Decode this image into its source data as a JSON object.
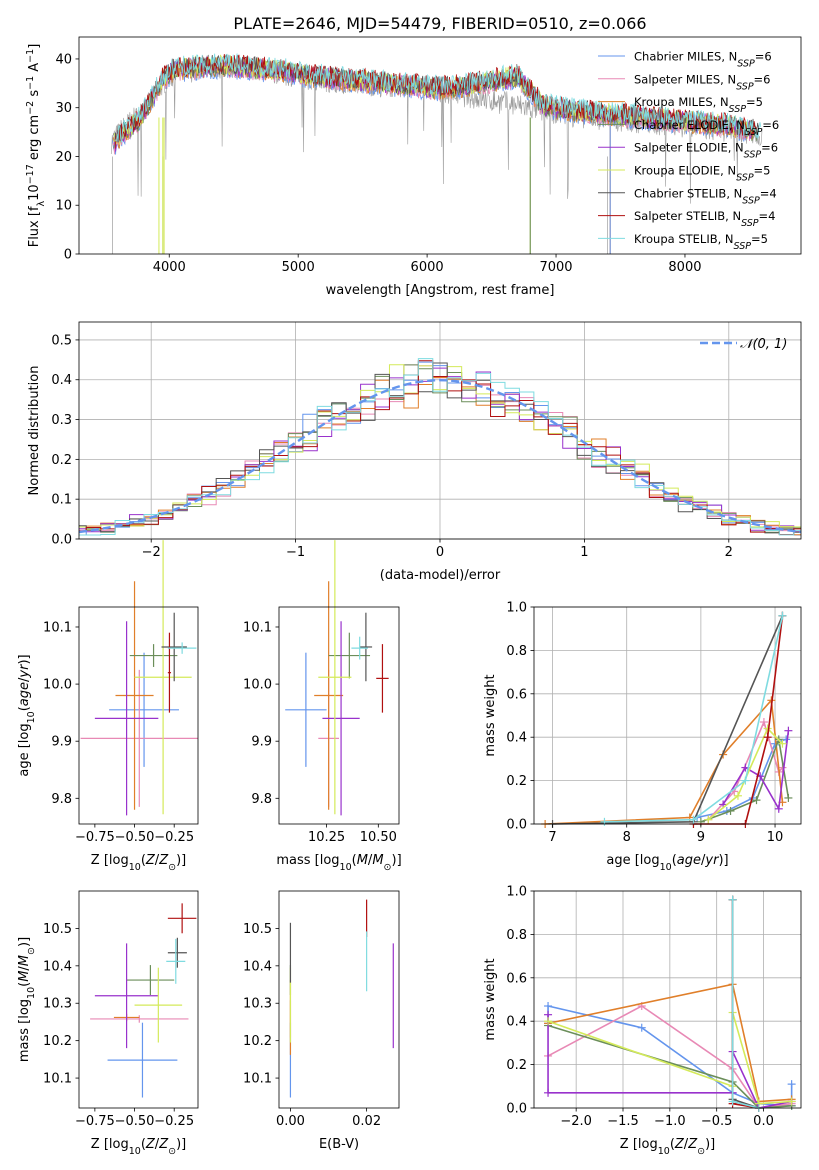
{
  "figure": {
    "title": "PLATE=2646, MJD=54479, FIBERID=0510, z=0.066"
  },
  "series_meta": [
    {
      "name": "Chabrier MILES, N$_{SSP}$=6",
      "label_main": "Chabrier MILES, N",
      "label_sub": "SSP",
      "label_end": "=6",
      "color": "#6495ed"
    },
    {
      "name": "Salpeter MILES, N$_{SSP}$=6",
      "label_main": "Salpeter MILES, N",
      "label_sub": "SSP",
      "label_end": "=6",
      "color": "#e889b5"
    },
    {
      "name": "Kroupa MILES, N$_{SSP}$=5",
      "label_main": "Kroupa MILES, N",
      "label_sub": "SSP",
      "label_end": "=5",
      "color": "#e07f2a"
    },
    {
      "name": "Chabrier ELODIE, N$_{SSP}$=6",
      "label_main": "Chabrier ELODIE, N",
      "label_sub": "SSP",
      "label_end": "=6",
      "color": "#6b8e5a"
    },
    {
      "name": "Salpeter ELODIE, N$_{SSP}$=6",
      "label_main": "Salpeter ELODIE, N",
      "label_sub": "SSP",
      "label_end": "=6",
      "color": "#9932cc"
    },
    {
      "name": "Kroupa ELODIE, N$_{SSP}$=5",
      "label_main": "Kroupa ELODIE, N",
      "label_sub": "SSP",
      "label_end": "=5",
      "color": "#d4ea5a"
    },
    {
      "name": "Chabrier STELIB, N$_{SSP}$=4",
      "label_main": "Chabrier STELIB, N",
      "label_sub": "SSP",
      "label_end": "=4",
      "color": "#555555"
    },
    {
      "name": "Salpeter STELIB, N$_{SSP}$=4",
      "label_main": "Salpeter STELIB, N",
      "label_sub": "SSP",
      "label_end": "=4",
      "color": "#b01010"
    },
    {
      "name": "Kroupa STELIB, N$_{SSP}$=5",
      "label_main": "Kroupa STELIB, N",
      "label_sub": "SSP",
      "label_end": "=5",
      "color": "#7fdbe0"
    }
  ],
  "chart_data": [
    {
      "id": "spectrum",
      "type": "line",
      "xlabel": "wavelength [Angstrom, rest frame]",
      "ylabel": "Flux [f$_\\lambda$ 10$^{-17}$ erg cm$^{-2}$ s$^{-1}$ A$^{-1}$]",
      "ylabel_parts": [
        "Flux [f",
        "λ",
        "10",
        "−17",
        " erg cm",
        "−2",
        " s",
        "−1",
        " A",
        "−1",
        "]"
      ],
      "xlim": [
        3300,
        8900
      ],
      "ylim": [
        0,
        44.5
      ],
      "xticks": [
        4000,
        5000,
        6000,
        7000,
        8000
      ],
      "yticks": [
        0,
        10,
        20,
        30,
        40
      ],
      "grid": false,
      "legend": "top-right",
      "x": [
        3550,
        3650,
        3750,
        3850,
        3950,
        4050,
        4150,
        4300,
        4500,
        4700,
        4900,
        5100,
        5300,
        5500,
        5700,
        5900,
        6100,
        6300,
        6500,
        6700,
        6900,
        7100,
        7300,
        7500,
        7700,
        7900,
        8100,
        8300,
        8500,
        8600
      ],
      "data_mean": [
        23,
        26,
        28,
        31,
        35,
        37,
        37.5,
        38.5,
        38.5,
        38,
        37,
        36,
        35.5,
        35,
        34.5,
        34.5,
        33.5,
        32.5,
        31.5,
        30.5,
        29.5,
        28.5,
        28,
        27.5,
        27,
        26.5,
        26,
        25.5,
        25,
        24.5
      ],
      "model_mean": [
        22,
        25,
        27,
        31,
        36,
        38,
        38,
        38.5,
        38.5,
        38,
        37.5,
        36.5,
        36,
        35.5,
        35,
        34.5,
        34,
        34.5,
        35.5,
        36.5,
        30.5,
        29.5,
        29,
        28.5,
        28,
        27.5,
        27,
        26.5,
        25.5,
        25
      ]
    },
    {
      "id": "residuals",
      "type": "histogram",
      "xlabel": "(data-model)/error",
      "ylabel": "Normed distribution",
      "xlim": [
        -2.5,
        2.5
      ],
      "ylim": [
        0,
        0.545
      ],
      "xticks": [
        -2,
        -1,
        0,
        1,
        2
      ],
      "yticks": [
        0.0,
        0.1,
        0.2,
        0.3,
        0.4,
        0.5
      ],
      "grid": true,
      "legend_label_main": "𝒩(0, 1)",
      "reference_curve": {
        "type": "gaussian",
        "mean": 0,
        "sigma": 1,
        "style": "dashed",
        "color": "#6495ed"
      },
      "bin_width": 0.1
    },
    {
      "id": "age_vs_Z",
      "type": "errorbar",
      "xlabel": "Z [log$_{10}$($Z/Z_\\odot$)]",
      "ylabel": "age  [log$_{10}$($age/yr$)]",
      "xlim": [
        -0.85,
        -0.1
      ],
      "ylim": [
        9.755,
        10.135
      ],
      "xticks": [
        -0.75,
        -0.5,
        -0.25
      ],
      "yticks": [
        9.8,
        9.9,
        10.0,
        10.1
      ],
      "points": [
        {
          "x": -0.44,
          "y": 9.955,
          "xerr": 0.22,
          "yerr": 0.1
        },
        {
          "x": -0.47,
          "y": 9.905,
          "xerr": 0.37,
          "yerr": 0.12
        },
        {
          "x": -0.5,
          "y": 9.98,
          "xerr": 0.12,
          "yerr": 0.2
        },
        {
          "x": -0.38,
          "y": 10.05,
          "xerr": 0.15,
          "yerr": 0.02
        },
        {
          "x": -0.55,
          "y": 9.94,
          "xerr": 0.2,
          "yerr": 0.17
        },
        {
          "x": -0.32,
          "y": 10.012,
          "xerr": 0.18,
          "yerr": 0.24
        },
        {
          "x": -0.25,
          "y": 10.065,
          "xerr": 0.08,
          "yerr": 0.06
        },
        {
          "x": -0.28,
          "y": 10.02,
          "xerr": 0.01,
          "yerr": 0.07
        },
        {
          "x": -0.2,
          "y": 10.063,
          "xerr": 0.09,
          "yerr": 0.01
        }
      ]
    },
    {
      "id": "age_vs_mass",
      "type": "errorbar",
      "xlabel": "mass [log$_{10}$($M/M_\\odot$)]",
      "ylabel": "",
      "xlim": [
        10.02,
        10.6
      ],
      "ylim": [
        9.755,
        10.135
      ],
      "xticks": [
        10.25,
        10.5
      ],
      "yticks": [
        9.8,
        9.9,
        10.0,
        10.1
      ],
      "points": [
        {
          "x": 10.15,
          "y": 9.955,
          "xerr": 0.1,
          "yerr": 0.1
        },
        {
          "x": 10.26,
          "y": 9.905,
          "xerr": 0.05,
          "yerr": 0.12
        },
        {
          "x": 10.26,
          "y": 9.98,
          "xerr": 0.07,
          "yerr": 0.2
        },
        {
          "x": 10.36,
          "y": 10.05,
          "xerr": 0.1,
          "yerr": 0.04
        },
        {
          "x": 10.32,
          "y": 9.94,
          "xerr": 0.09,
          "yerr": 0.17
        },
        {
          "x": 10.29,
          "y": 10.012,
          "xerr": 0.08,
          "yerr": 0.24
        },
        {
          "x": 10.44,
          "y": 10.065,
          "xerr": 0.03,
          "yerr": 0.06
        },
        {
          "x": 10.52,
          "y": 10.01,
          "xerr": 0.03,
          "yerr": 0.06
        },
        {
          "x": 10.41,
          "y": 10.063,
          "xerr": 0.04,
          "yerr": 0.02
        }
      ]
    },
    {
      "id": "weight_vs_age",
      "type": "line",
      "xlabel": "age  [log$_{10}$($age/yr$)]",
      "ylabel": "mass weight",
      "xlim": [
        6.75,
        10.35
      ],
      "ylim": [
        0,
        1
      ],
      "xticks": [
        7,
        8,
        9,
        10
      ],
      "yticks": [
        0.0,
        0.2,
        0.4,
        0.6,
        0.8,
        1.0
      ],
      "grid": true,
      "series": [
        {
          "x": [
            8.95,
            9.35,
            9.7,
            10.0,
            10.05,
            10.15
          ],
          "y": [
            0.03,
            0.06,
            0.12,
            0.37,
            0.38,
            0.39
          ]
        },
        {
          "x": [
            9.1,
            9.45,
            9.85,
            10.05,
            10.1
          ],
          "y": [
            0.02,
            0.15,
            0.47,
            0.24,
            0.26
          ]
        },
        {
          "x": [
            6.9,
            8.85,
            9.3,
            9.95,
            10.1
          ],
          "y": [
            0.0,
            0.03,
            0.32,
            0.57,
            0.1
          ]
        },
        {
          "x": [
            9.0,
            9.4,
            9.75,
            10.05,
            10.18
          ],
          "y": [
            0.01,
            0.06,
            0.11,
            0.39,
            0.12
          ]
        },
        {
          "x": [
            9.3,
            9.6,
            9.8,
            10.05,
            10.18
          ],
          "y": [
            0.09,
            0.26,
            0.22,
            0.07,
            0.43
          ]
        },
        {
          "x": [
            9.1,
            9.5,
            9.9,
            10.1
          ],
          "y": [
            0.02,
            0.13,
            0.44,
            0.37
          ]
        },
        {
          "x": [
            7.0,
            8.9,
            10.1
          ],
          "y": [
            0.0,
            0.01,
            0.96
          ]
        },
        {
          "x": [
            8.9,
            9.6,
            9.9,
            10.1
          ],
          "y": [
            0.0,
            0.0,
            0.4,
            0.96
          ]
        },
        {
          "x": [
            7.7,
            8.9,
            9.6,
            10.1
          ],
          "y": [
            0.01,
            0.02,
            0.2,
            0.96
          ]
        }
      ]
    },
    {
      "id": "mass_vs_Z",
      "type": "errorbar",
      "xlabel": "Z [log$_{10}$($Z/Z_\\odot$)]",
      "ylabel": "mass [log$_{10}$($M/M_\\odot$)]",
      "xlim": [
        -0.85,
        -0.1
      ],
      "ylim": [
        10.02,
        10.6
      ],
      "xticks": [
        -0.75,
        -0.5,
        -0.25
      ],
      "yticks": [
        10.1,
        10.2,
        10.3,
        10.4,
        10.5
      ],
      "points": [
        {
          "x": -0.45,
          "y": 10.148,
          "xerr": 0.22,
          "yerr": 0.1
        },
        {
          "x": -0.47,
          "y": 10.258,
          "xerr": 0.31,
          "yerr": 0.01
        },
        {
          "x": -0.55,
          "y": 10.262,
          "xerr": 0.08,
          "yerr": 0.01
        },
        {
          "x": -0.4,
          "y": 10.362,
          "xerr": 0.15,
          "yerr": 0.04
        },
        {
          "x": -0.55,
          "y": 10.32,
          "xerr": 0.2,
          "yerr": 0.14
        },
        {
          "x": -0.35,
          "y": 10.295,
          "xerr": 0.15,
          "yerr": 0.1
        },
        {
          "x": -0.23,
          "y": 10.435,
          "xerr": 0.06,
          "yerr": 0.04
        },
        {
          "x": -0.2,
          "y": 10.527,
          "xerr": 0.09,
          "yerr": 0.04
        },
        {
          "x": -0.24,
          "y": 10.412,
          "xerr": 0.06,
          "yerr": 0.06
        }
      ]
    },
    {
      "id": "mass_vs_ebv",
      "type": "errorbar",
      "xlabel": "E(B-V)",
      "ylabel": "",
      "xlim": [
        -0.003,
        0.0285
      ],
      "ylim": [
        10.02,
        10.6
      ],
      "xticks": [
        0.0,
        0.02
      ],
      "yticks": [
        10.1,
        10.2,
        10.3,
        10.4,
        10.5
      ],
      "points": [
        {
          "x": 0.0,
          "y": 10.148,
          "xerr": 0,
          "yerr": 0.1
        },
        {
          "x": 0.0,
          "y": 10.258,
          "xerr": 0,
          "yerr": 0.05
        },
        {
          "x": 0.0,
          "y": 10.262,
          "xerr": 0,
          "yerr": 0.1
        },
        {
          "x": 0.0,
          "y": 10.362,
          "xerr": 0,
          "yerr": 0.04
        },
        {
          "x": 0.027,
          "y": 10.32,
          "xerr": 0,
          "yerr": 0.14
        },
        {
          "x": 0.0,
          "y": 10.295,
          "xerr": 0,
          "yerr": 0.1
        },
        {
          "x": 0.0,
          "y": 10.435,
          "xerr": 0,
          "yerr": 0.08
        },
        {
          "x": 0.02,
          "y": 10.527,
          "xerr": 0,
          "yerr": 0.05
        },
        {
          "x": 0.02,
          "y": 10.412,
          "xerr": 0,
          "yerr": 0.08
        }
      ]
    },
    {
      "id": "weight_vs_Z",
      "type": "line",
      "xlabel": "Z [log$_{10}$($Z/Z_\\odot$)]",
      "ylabel": "mass weight",
      "xlim": [
        -2.45,
        0.4
      ],
      "ylim": [
        0,
        1
      ],
      "xticks": [
        -2.0,
        -1.5,
        -1.0,
        -0.5,
        0.0
      ],
      "yticks": [
        0.0,
        0.2,
        0.4,
        0.6,
        0.8,
        1.0
      ],
      "grid": true,
      "series": [
        {
          "x": [
            -2.3,
            -2.3,
            -1.3,
            -0.33,
            -0.05,
            0.3,
            0.3
          ],
          "y": [
            0.39,
            0.47,
            0.37,
            0.07,
            0.02,
            0.01,
            0.11
          ]
        },
        {
          "x": [
            -2.3,
            -1.3,
            -0.33,
            -0.05,
            0.3
          ],
          "y": [
            0.24,
            0.47,
            0.18,
            0.0,
            0.02
          ]
        },
        {
          "x": [
            -2.3,
            -0.33,
            -0.05,
            0.3
          ],
          "y": [
            0.39,
            0.57,
            0.03,
            0.04
          ]
        },
        {
          "x": [
            -2.3,
            -0.33,
            -0.05,
            0.3
          ],
          "y": [
            0.38,
            0.12,
            0.0,
            0.01
          ]
        },
        {
          "x": [
            -2.3,
            -2.3,
            -0.33,
            -0.33,
            -0.05,
            0.3
          ],
          "y": [
            0.43,
            0.07,
            0.07,
            0.26,
            0.0,
            0.03
          ]
        },
        {
          "x": [
            -2.3,
            -0.33,
            -0.33,
            -0.05,
            0.3
          ],
          "y": [
            0.4,
            0.1,
            0.44,
            0.02,
            0.03
          ]
        },
        {
          "x": [
            -0.33,
            -0.33,
            -0.05
          ],
          "y": [
            0.96,
            0.04,
            0.0
          ]
        },
        {
          "x": [
            -0.33,
            -0.33,
            -0.05
          ],
          "y": [
            0.96,
            0.02,
            0.0
          ]
        },
        {
          "x": [
            -0.33,
            -0.33,
            -0.05
          ],
          "y": [
            0.96,
            0.03,
            0.0
          ]
        }
      ]
    }
  ]
}
